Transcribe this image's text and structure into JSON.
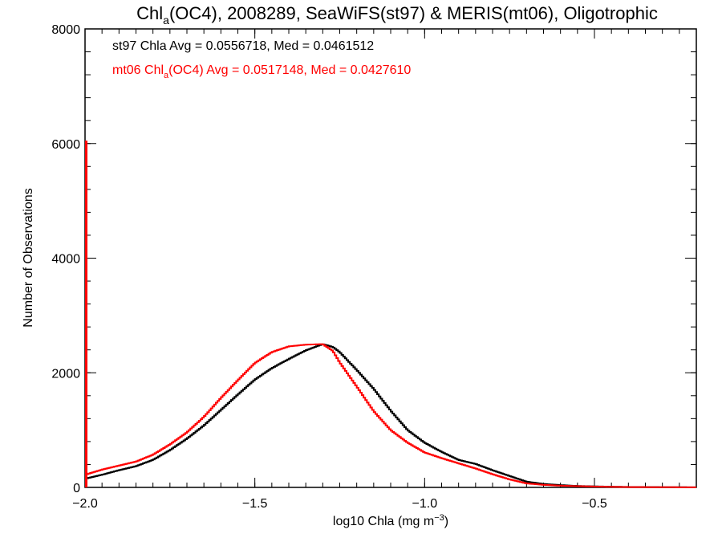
{
  "chart_data": {
    "type": "line",
    "title": {
      "prefix": "Chl",
      "sub": "a",
      "rest": "(OC4), 2008289, SeaWiFS(st97) & MERIS(mt06), Oligotrophic"
    },
    "xlabel": {
      "main": "log10 Chla (mg m",
      "sup": "−3",
      "close": ")"
    },
    "ylabel": "Number of Observations",
    "xlim": [
      -2.0,
      -0.2
    ],
    "ylim": [
      0,
      8000
    ],
    "x_ticks": [
      {
        "value": -2.0,
        "label": "−2.0"
      },
      {
        "value": -1.5,
        "label": "−1.5"
      },
      {
        "value": -1.0,
        "label": "−1.0"
      },
      {
        "value": -0.5,
        "label": "−0.5"
      }
    ],
    "y_ticks": [
      {
        "value": 0,
        "label": "0"
      },
      {
        "value": 2000,
        "label": "2000"
      },
      {
        "value": 4000,
        "label": "4000"
      },
      {
        "value": 6000,
        "label": "6000"
      },
      {
        "value": 8000,
        "label": "8000"
      }
    ],
    "annotations": [
      {
        "color": "#000000",
        "parts": [
          {
            "text": "st97 Chla Avg = 0.0556718, Med = 0.0461512"
          }
        ]
      },
      {
        "color": "#ff0000",
        "parts": [
          {
            "text": "mt06 Chl"
          },
          {
            "text": "a",
            "sub": true
          },
          {
            "text": "(OC4) Avg = 0.0517148, Med = 0.0427610"
          }
        ]
      }
    ],
    "series": [
      {
        "name": "st97",
        "color": "#000000",
        "x": [
          -2.0,
          -1.95,
          -1.9,
          -1.85,
          -1.8,
          -1.75,
          -1.7,
          -1.65,
          -1.6,
          -1.55,
          -1.5,
          -1.45,
          -1.4,
          -1.35,
          -1.3,
          -1.27,
          -1.25,
          -1.2,
          -1.15,
          -1.1,
          -1.05,
          -1.0,
          -0.95,
          -0.9,
          -0.85,
          -0.8,
          -0.75,
          -0.7,
          -0.65,
          -0.6,
          -0.55,
          -0.5,
          -0.45,
          -0.4,
          -0.3,
          -0.2
        ],
        "y": [
          150,
          220,
          300,
          370,
          480,
          650,
          850,
          1080,
          1350,
          1620,
          1880,
          2080,
          2240,
          2390,
          2500,
          2450,
          2360,
          2050,
          1720,
          1340,
          1000,
          780,
          620,
          480,
          410,
          300,
          200,
          100,
          60,
          40,
          25,
          18,
          12,
          8,
          4,
          2
        ]
      },
      {
        "name": "mt06",
        "color": "#ff0000",
        "spike": {
          "x": -2.0,
          "y": 6050
        },
        "x": [
          -2.0,
          -1.95,
          -1.9,
          -1.85,
          -1.8,
          -1.75,
          -1.7,
          -1.65,
          -1.6,
          -1.55,
          -1.5,
          -1.45,
          -1.4,
          -1.35,
          -1.3,
          -1.27,
          -1.25,
          -1.2,
          -1.15,
          -1.1,
          -1.05,
          -1.0,
          -0.95,
          -0.9,
          -0.85,
          -0.8,
          -0.75,
          -0.7,
          -0.65,
          -0.6,
          -0.55,
          -0.5,
          -0.45,
          -0.4,
          -0.3,
          -0.2
        ],
        "y": [
          220,
          310,
          380,
          450,
          570,
          750,
          960,
          1230,
          1560,
          1870,
          2170,
          2360,
          2460,
          2490,
          2500,
          2380,
          2180,
          1760,
          1330,
          1000,
          780,
          610,
          510,
          420,
          330,
          230,
          140,
          70,
          45,
          30,
          22,
          15,
          10,
          6,
          3,
          2
        ]
      }
    ]
  }
}
